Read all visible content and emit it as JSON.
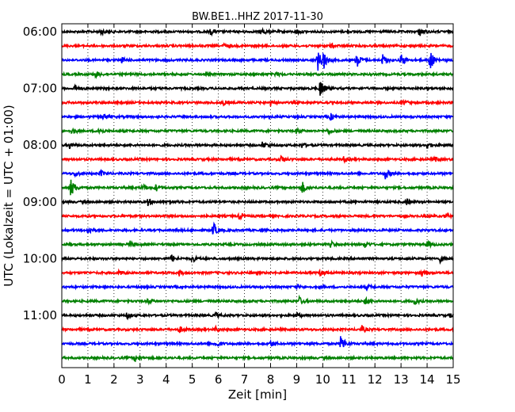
{
  "chart_data": {
    "type": "line",
    "title": "BW.BE1..HHZ 2017-11-30",
    "xlabel": "Zeit  [min]",
    "ylabel": "UTC (Lokalzeit = UTC + 01:00)",
    "xlim": [
      0,
      15
    ],
    "x_ticks": [
      "0",
      "1",
      "2",
      "3",
      "4",
      "5",
      "6",
      "7",
      "8",
      "9",
      "10",
      "11",
      "12",
      "13",
      "14",
      "15"
    ],
    "y_ticks": [
      "06:00",
      "07:00",
      "08:00",
      "09:00",
      "10:00",
      "11:00"
    ],
    "grid": "vertical dotted at each minute",
    "trace_interval_min": 15,
    "color_cycle": [
      "#000000",
      "#ff0000",
      "#0000ff",
      "#008000"
    ],
    "traces": [
      {
        "start": "06:00",
        "events": [
          [
            1.5,
            0.25
          ],
          [
            5.7,
            0.25
          ],
          [
            7.7,
            0.25
          ],
          [
            9.0,
            0.2
          ],
          [
            13.7,
            0.4
          ]
        ]
      },
      {
        "start": "06:15",
        "events": [
          [
            6.2,
            0.2
          ],
          [
            10.3,
            0.2
          ]
        ]
      },
      {
        "start": "06:30",
        "events": [
          [
            2.3,
            0.2
          ],
          [
            9.8,
            1.0
          ],
          [
            10.0,
            0.9
          ],
          [
            11.3,
            0.7
          ],
          [
            12.3,
            0.5
          ],
          [
            13.0,
            0.6
          ],
          [
            14.1,
            1.0
          ]
        ]
      },
      {
        "start": "06:45",
        "events": [
          [
            1.3,
            0.3
          ],
          [
            8.2,
            0.2
          ]
        ]
      },
      {
        "start": "07:00",
        "events": [
          [
            0.5,
            0.3
          ],
          [
            9.9,
            0.9
          ]
        ]
      },
      {
        "start": "07:15",
        "events": [
          [
            6.2,
            0.2
          ],
          [
            8.0,
            0.25
          ],
          [
            13.1,
            0.2
          ]
        ]
      },
      {
        "start": "07:30",
        "events": [
          [
            1.6,
            0.3
          ],
          [
            10.3,
            0.3
          ]
        ]
      },
      {
        "start": "07:45",
        "events": [
          [
            0.4,
            0.3
          ],
          [
            1.4,
            0.3
          ],
          [
            9.0,
            0.25
          ],
          [
            10.2,
            0.25
          ]
        ]
      },
      {
        "start": "08:00",
        "events": [
          [
            0.3,
            0.3
          ],
          [
            7.7,
            0.35
          ],
          [
            9.2,
            0.2
          ],
          [
            14.0,
            0.3
          ]
        ]
      },
      {
        "start": "08:15",
        "events": [
          [
            8.4,
            0.3
          ],
          [
            10.8,
            0.2
          ],
          [
            14.3,
            0.2
          ]
        ]
      },
      {
        "start": "08:30",
        "events": [
          [
            0.5,
            0.25
          ],
          [
            1.5,
            0.25
          ],
          [
            12.4,
            0.5
          ]
        ]
      },
      {
        "start": "08:45",
        "events": [
          [
            0.35,
            0.9
          ],
          [
            3.1,
            0.3
          ],
          [
            3.6,
            0.3
          ],
          [
            9.2,
            0.6
          ]
        ]
      },
      {
        "start": "09:00",
        "events": [
          [
            3.3,
            0.3
          ],
          [
            4.1,
            0.25
          ],
          [
            13.2,
            0.3
          ]
        ]
      },
      {
        "start": "09:15",
        "events": [
          [
            6.8,
            0.3
          ],
          [
            14.7,
            0.2
          ]
        ]
      },
      {
        "start": "09:30",
        "events": [
          [
            1.0,
            0.4
          ],
          [
            5.8,
            0.7
          ]
        ]
      },
      {
        "start": "09:45",
        "events": [
          [
            2.6,
            0.3
          ],
          [
            10.3,
            0.25
          ],
          [
            11.6,
            0.3
          ],
          [
            14.0,
            0.3
          ]
        ]
      },
      {
        "start": "10:00",
        "events": [
          [
            4.2,
            0.35
          ],
          [
            5.0,
            0.3
          ],
          [
            14.5,
            0.3
          ]
        ]
      },
      {
        "start": "10:15",
        "events": [
          [
            2.2,
            0.2
          ],
          [
            4.5,
            0.25
          ],
          [
            9.9,
            0.25
          ],
          [
            13.8,
            0.3
          ]
        ]
      },
      {
        "start": "10:30",
        "events": [
          [
            9.0,
            0.2
          ],
          [
            11.7,
            0.2
          ]
        ]
      },
      {
        "start": "10:45",
        "events": [
          [
            3.3,
            0.25
          ],
          [
            9.1,
            0.35
          ],
          [
            11.6,
            0.3
          ],
          [
            13.5,
            0.35
          ]
        ]
      },
      {
        "start": "11:00",
        "events": [
          [
            2.5,
            0.25
          ],
          [
            5.9,
            0.25
          ],
          [
            9.0,
            0.2
          ],
          [
            14.9,
            0.2
          ]
        ]
      },
      {
        "start": "11:15",
        "events": [
          [
            4.5,
            0.3
          ],
          [
            5.9,
            0.2
          ],
          [
            11.5,
            0.3
          ]
        ]
      },
      {
        "start": "11:30",
        "events": [
          [
            5.9,
            0.4
          ],
          [
            8.0,
            0.25
          ],
          [
            10.7,
            0.9
          ]
        ]
      },
      {
        "start": "11:45",
        "events": [
          [
            2.8,
            0.3
          ]
        ]
      }
    ]
  }
}
